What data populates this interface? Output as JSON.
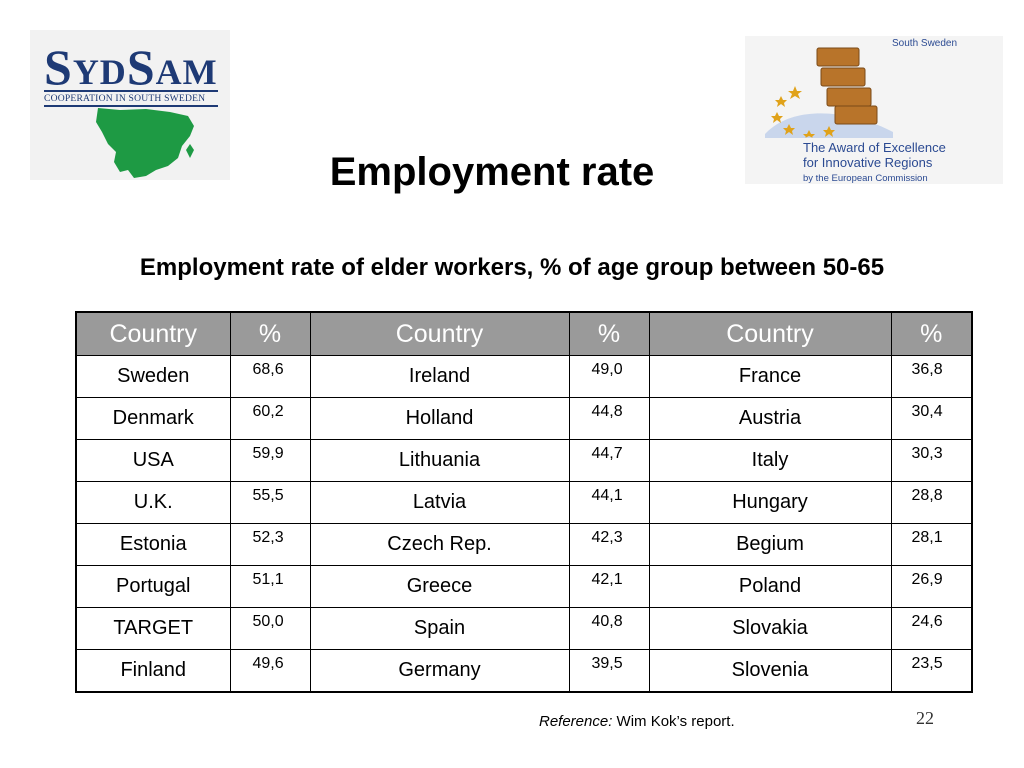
{
  "logos": {
    "left": {
      "brand_first": "S",
      "brand_mid": "YD",
      "brand_second": "S",
      "brand_end": "AM",
      "tagline": "COOPERATION IN SOUTH SWEDEN"
    },
    "right": {
      "region": "South Sweden",
      "award_line1": "The Award of Excellence",
      "award_line2": "for Innovative Regions",
      "award_line3": "by the European Commission"
    }
  },
  "colors": {
    "header_bg": "#9a9a9a",
    "logo_blue": "#1e3a75",
    "map_green": "#1e9a44",
    "star_gold": "#e0a21a"
  },
  "title": "Employment rate",
  "subtitle": "Employment rate of elder workers, % of age group between 50-65",
  "table": {
    "headers": [
      "Country",
      "%",
      "Country",
      "%",
      "Country",
      "%"
    ],
    "rows": [
      [
        "Sweden",
        "68,6",
        "Ireland",
        "49,0",
        "France",
        "36,8"
      ],
      [
        "Denmark",
        "60,2",
        "Holland",
        "44,8",
        "Austria",
        "30,4"
      ],
      [
        "USA",
        "59,9",
        "Lithuania",
        "44,7",
        "Italy",
        "30,3"
      ],
      [
        "U.K.",
        "55,5",
        "Latvia",
        "44,1",
        "Hungary",
        "28,8"
      ],
      [
        "Estonia",
        "52,3",
        "Czech Rep.",
        "42,3",
        "Begium",
        "28,1"
      ],
      [
        "Portugal",
        "51,1",
        "Greece",
        "42,1",
        "Poland",
        "26,9"
      ],
      [
        "TARGET",
        "50,0",
        "Spain",
        "40,8",
        "Slovakia",
        "24,6"
      ],
      [
        "Finland",
        "49,6",
        "Germany",
        "39,5",
        "Slovenia",
        "23,5"
      ]
    ]
  },
  "footer": {
    "reference_label": "Reference:",
    "reference_text": " Wim Kok’s report.",
    "page_number": "22"
  }
}
